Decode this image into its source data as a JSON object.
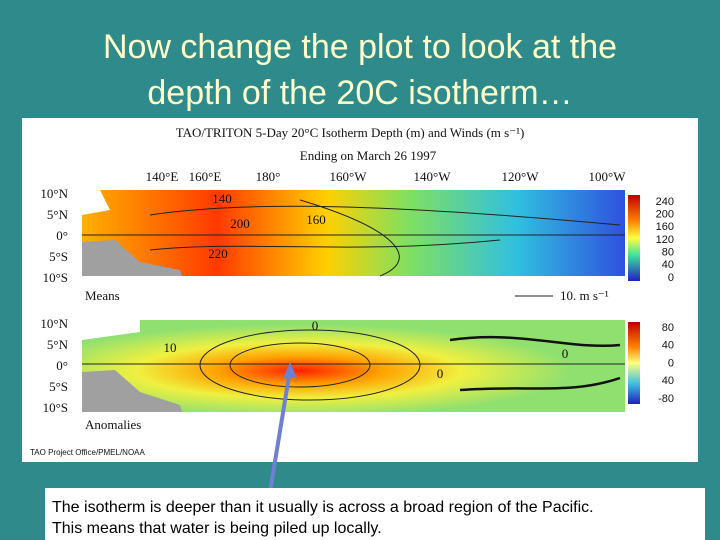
{
  "slide": {
    "title_lines": [
      "Now change the plot to look at the",
      "depth of the 20C isotherm…"
    ],
    "figure": {
      "title": "TAO/TRITON 5-Day 20°C Isotherm Depth (m) and Winds (m s⁻¹)",
      "subtitle": "Ending on March 26 1997",
      "longitudes": [
        "140°E",
        "160°E",
        "180°",
        "160°W",
        "140°W",
        "120°W",
        "100°W"
      ],
      "latitudes": [
        "10°N",
        "5°N",
        "0°",
        "5°S",
        "10°S"
      ],
      "panels": [
        {
          "label": "Means",
          "colorbar": [
            240,
            200,
            160,
            120,
            80,
            40,
            0
          ],
          "contour_labels": [
            "140",
            "200",
            "160",
            "220"
          ],
          "wind_scale": "10. m s⁻¹"
        },
        {
          "label": "Anomalies",
          "colorbar": [
            80,
            40,
            0,
            40,
            -80
          ],
          "contour_labels": [
            "10",
            "0",
            "0",
            "0"
          ]
        }
      ],
      "credit": "TAO Project Office/PMEL/NOAA"
    },
    "caption_lines": [
      "The isotherm is deeper than it usually is across a broad region of the Pacific.",
      "This means that water is being piled up locally."
    ]
  }
}
